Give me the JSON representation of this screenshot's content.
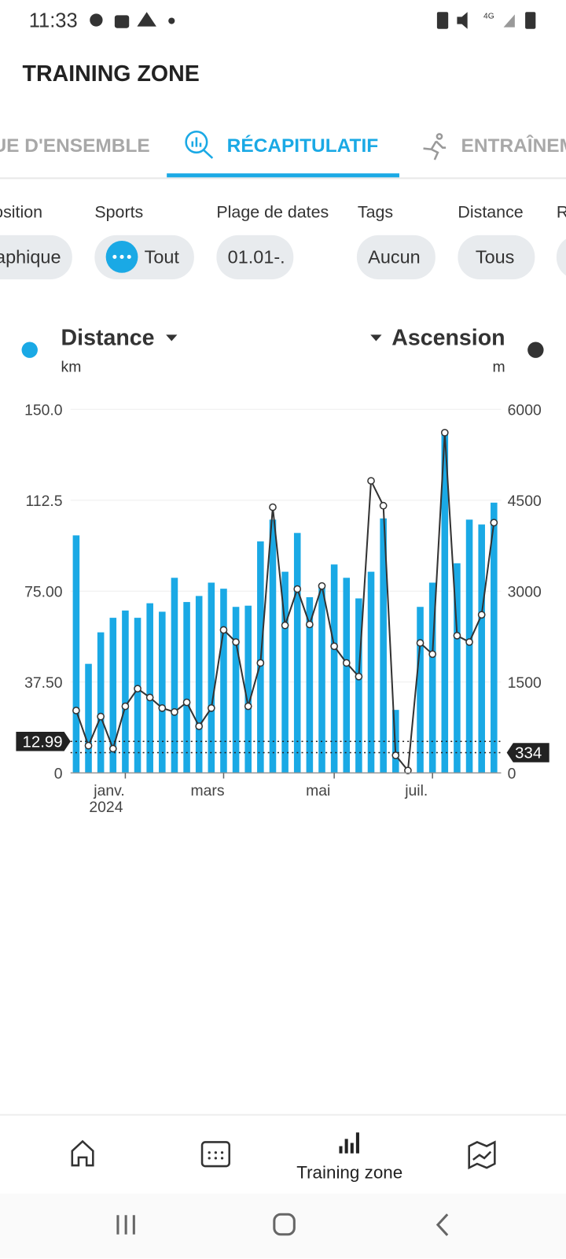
{
  "status_bar": {
    "time": "11:33"
  },
  "header": {
    "title": "TRAINING ZONE"
  },
  "tabs": [
    "VUE D'ENSEMBLE",
    "RÉCAPITULATIF",
    "ENTRAÎNEMENT"
  ],
  "filters": [
    {
      "label": "Position",
      "value": "Graphique"
    },
    {
      "label": "Sports",
      "value": "Tout"
    },
    {
      "label": "Plage de dates",
      "value": "01.01-."
    },
    {
      "label": "Tags",
      "value": "Aucun"
    },
    {
      "label": "Distance",
      "value": "Tous"
    },
    {
      "label": "R"
    }
  ],
  "chart_data": {
    "type": "bar",
    "units": [
      "km",
      "m"
    ],
    "categories": [
      null,
      null,
      null,
      null,
      "janv.",
      null,
      null,
      null,
      null,
      null,
      null,
      null,
      "mars",
      null,
      null,
      null,
      null,
      null,
      null,
      null,
      null,
      "mai",
      null,
      null,
      null,
      null,
      null,
      null,
      null,
      "juil.",
      null,
      null,
      null,
      null,
      null
    ],
    "year_label": "2024",
    "series": [
      {
        "name": "Distance",
        "color": "#1aa9e5",
        "type": "bar",
        "values": [
          98,
          45,
          58,
          64,
          67,
          64,
          70,
          66.5,
          80.5,
          70.5,
          73,
          78.5,
          76,
          68.5,
          69,
          95.5,
          104.5,
          83,
          99,
          72.5,
          77,
          86,
          80.5,
          72,
          83,
          105,
          26,
          0,
          68.5,
          78.5,
          141,
          86.5,
          104.5,
          102.5,
          111.5
        ]
      },
      {
        "name": "Ascension",
        "color": "#333333",
        "type": "line",
        "axis": "y2",
        "values": [
          1030,
          450,
          930,
          400,
          1100,
          1390,
          1245,
          1070,
          1005,
          1165,
          770,
          1070,
          2360,
          2160,
          1100,
          1815,
          4385,
          2435,
          3035,
          2450,
          3085,
          2090,
          1815,
          1590,
          4820,
          4410,
          290,
          40,
          2145,
          1960,
          5615,
          2265,
          2160,
          2610,
          4130
        ]
      }
    ],
    "ylim": [
      0,
      150
    ],
    "yticks": [
      0,
      {
        "value": 37.5,
        "label": "37.50"
      },
      {
        "value": 75,
        "label": "75.00"
      },
      112.5,
      {
        "value": 150,
        "label": "150.0"
      }
    ],
    "y2lim": [
      0,
      6000
    ],
    "y2ticks": [
      0,
      1500,
      3000,
      4500,
      6000
    ],
    "grid": true,
    "reference_lines": [
      {
        "value": 12.99,
        "axis": "y"
      },
      {
        "value": 334,
        "axis": "y2"
      }
    ]
  },
  "bottom_nav": {
    "active_label": "Training zone"
  }
}
